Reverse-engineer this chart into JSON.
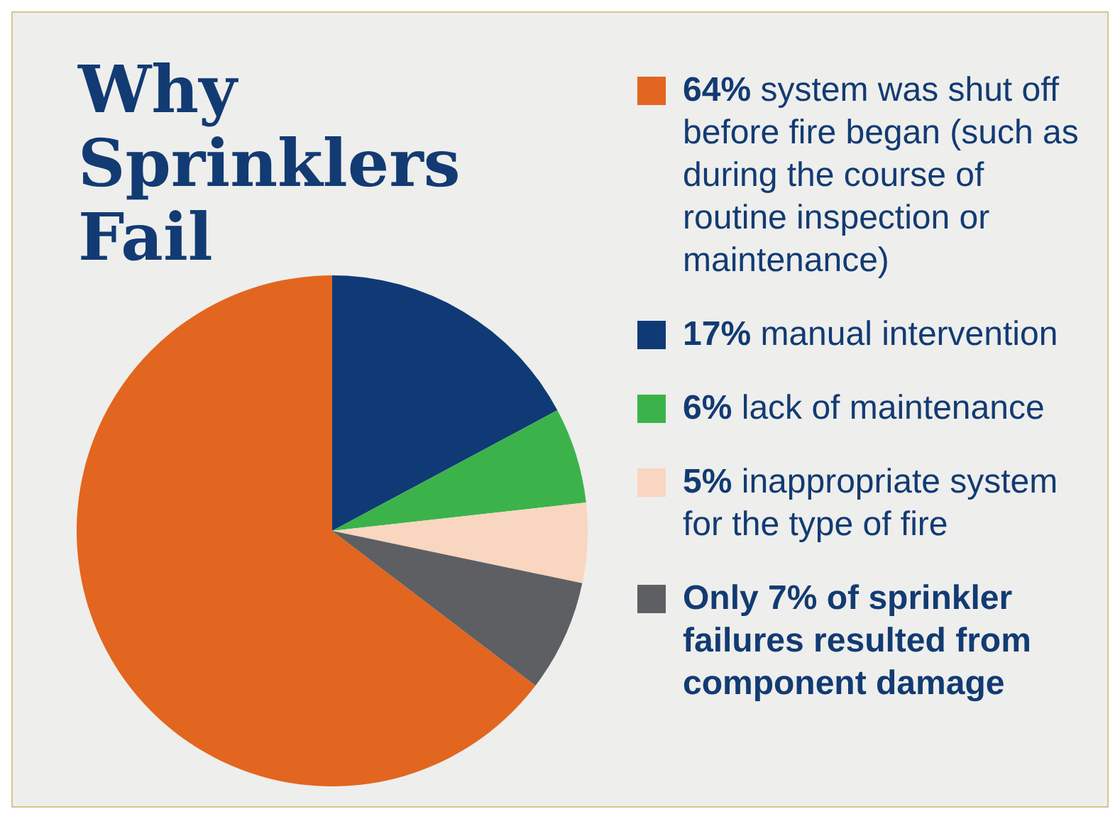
{
  "chart_data": {
    "type": "pie",
    "title": "Why Sprinklers Fail",
    "categories": [
      "64% system was shut off before fire began (such as during the course of routine inspection or maintenance)",
      "17% manual intervention",
      "6% lack of maintenance",
      "5% inappropriate system for the type of fire",
      "Only 7% of sprinkler failures resulted from component damage"
    ],
    "values": [
      64,
      17,
      6,
      5,
      7
    ],
    "colors": [
      "#e2661f",
      "#0f3a76",
      "#3cb34a",
      "#f8d6c0",
      "#5e5f63"
    ],
    "legend": "right"
  }
}
